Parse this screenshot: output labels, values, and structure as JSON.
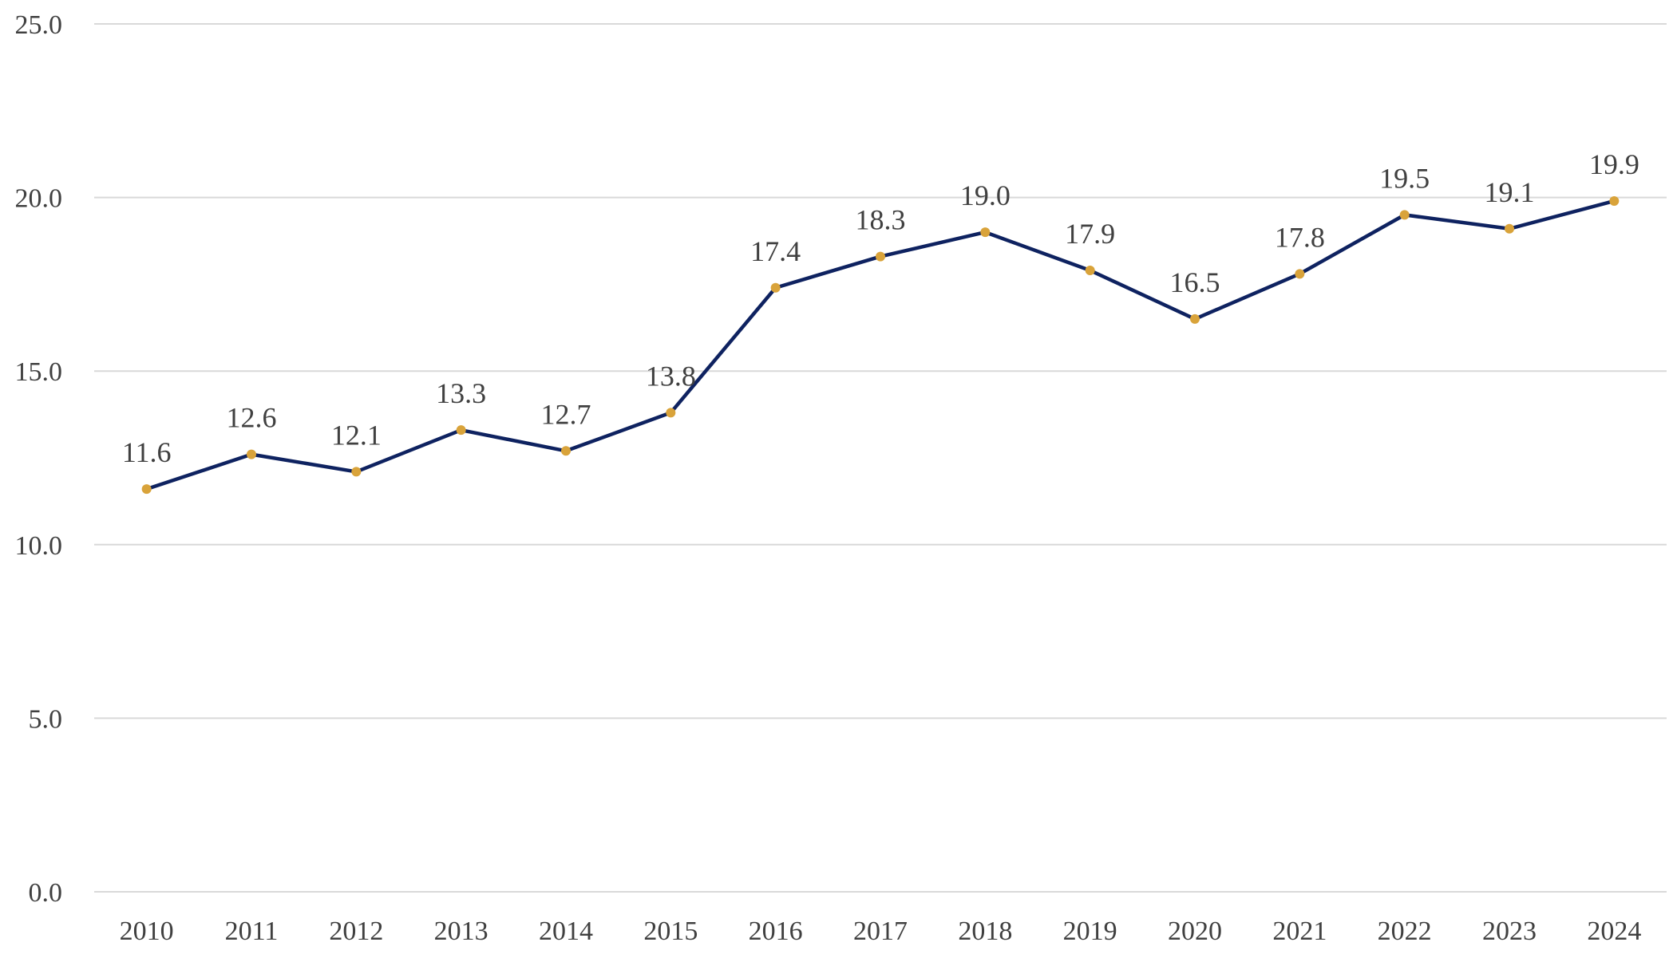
{
  "chart_data": {
    "type": "line",
    "title": "",
    "xlabel": "",
    "ylabel": "",
    "categories": [
      "2010",
      "2011",
      "2012",
      "2013",
      "2014",
      "2015",
      "2016",
      "2017",
      "2018",
      "2019",
      "2020",
      "2021",
      "2022",
      "2023",
      "2024"
    ],
    "series": [
      {
        "values": [
          11.6,
          12.6,
          12.1,
          13.3,
          12.7,
          13.8,
          17.4,
          18.3,
          19.0,
          17.9,
          16.5,
          17.8,
          19.5,
          19.1,
          19.9
        ],
        "labels": [
          "11.6",
          "12.6",
          "12.1",
          "13.3",
          "12.7",
          "13.8",
          "17.4",
          "18.3",
          "19.0",
          "17.9",
          "16.5",
          "17.8",
          "19.5",
          "19.1",
          "19.9"
        ],
        "line_color": "#0e2260",
        "marker_color": "#d9a33a"
      }
    ],
    "ylim": [
      0,
      25
    ],
    "yticks": [
      0,
      5,
      10,
      15,
      20,
      25
    ],
    "ytick_labels": [
      "0.0",
      "5.0",
      "10.0",
      "15.0",
      "20.0",
      "25.0"
    ],
    "grid": true,
    "grid_color": "#d9d9d9",
    "legend": "none"
  }
}
